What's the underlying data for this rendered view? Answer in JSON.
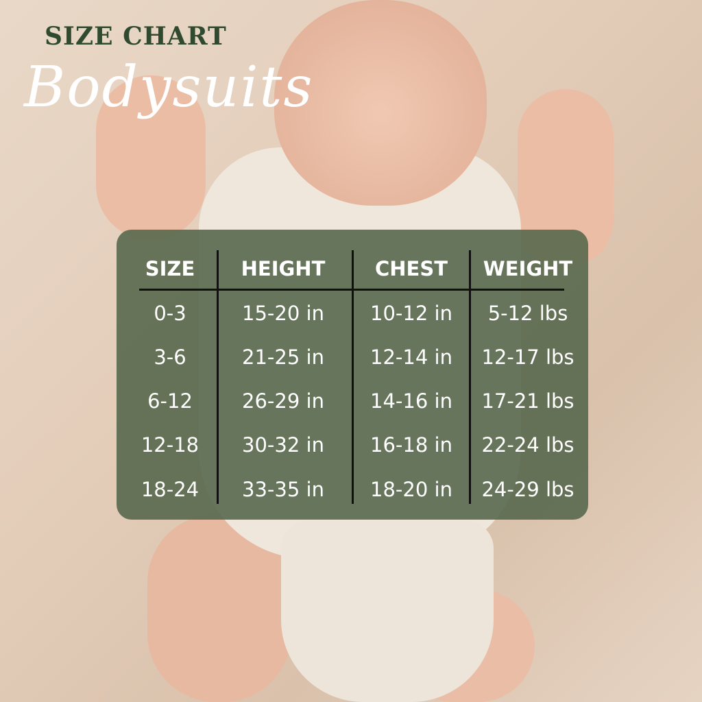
{
  "title": "SIZE CHART",
  "subtitle": "Bodysuits",
  "colors": {
    "title": "#2f4a2e",
    "panel": "#58684e",
    "text": "#ffffff"
  },
  "table": {
    "headers": [
      "SIZE",
      "HEIGHT",
      "CHEST",
      "WEIGHT"
    ],
    "rows": [
      [
        "0-3",
        "15-20 in",
        "10-12 in",
        "5-12 lbs"
      ],
      [
        "3-6",
        "21-25 in",
        "12-14 in",
        "12-17 lbs"
      ],
      [
        "6-12",
        "26-29 in",
        "14-16 in",
        "17-21 lbs"
      ],
      [
        "12-18",
        "30-32 in",
        "16-18 in",
        "22-24 lbs"
      ],
      [
        "18-24",
        "33-35 in",
        "18-20 in",
        "24-29 lbs"
      ]
    ]
  }
}
